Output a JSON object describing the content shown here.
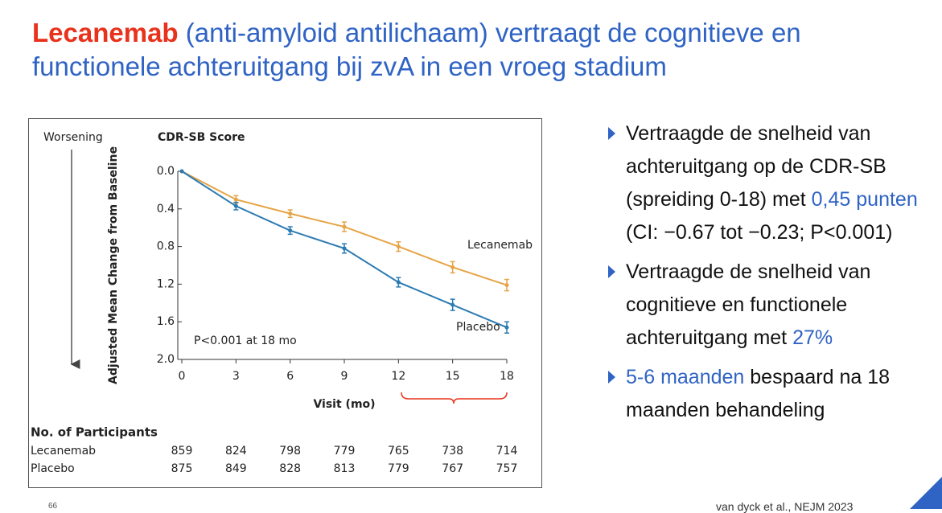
{
  "slide": {
    "title": [
      {
        "text": "Lecanemab",
        "style": "accent"
      },
      {
        "text": " (anti-amyloid antilichaam) vertraagt de cognitieve en functionele achteruitgang bij zvA in een vroeg stadium",
        "style": "normal"
      }
    ],
    "bullets": [
      [
        {
          "text": "Vertraagde de snelheid van achteruitgang op de CDR-SB (spreiding 0-18) met ",
          "style": "normal"
        },
        {
          "text": "0,45 punten",
          "style": "highlight"
        },
        {
          "text": " (CI: −0.67 tot −0.23; P<0.001)",
          "style": "normal"
        }
      ],
      [
        {
          "text": "Vertraagde de snelheid van cognitieve en functionele achteruitgang met ",
          "style": "normal"
        },
        {
          "text": "27%",
          "style": "highlight"
        }
      ],
      [
        {
          "text": "5-6 maanden",
          "style": "highlight"
        },
        {
          "text": " bespaard na 18 maanden behandeling",
          "style": "normal"
        }
      ]
    ],
    "footer": "van dyck et al., NEJM 2023",
    "page_number": "66"
  },
  "chart_data": {
    "type": "line",
    "title": "CDR-SB Score",
    "direction_label": "Worsening",
    "y_label": "Adjusted Mean Change from Baseline",
    "x_label": "Visit (mo)",
    "annotation": "P<0.001 at 18 mo",
    "x": [
      0,
      3,
      6,
      9,
      12,
      15,
      18
    ],
    "xlim": [
      0,
      18
    ],
    "xticks": [
      0,
      3,
      6,
      9,
      12,
      15,
      18
    ],
    "ylim": [
      0,
      2
    ],
    "y_inverted": true,
    "yticks": [
      {
        "value": 0,
        "label": "0.0"
      },
      0.4,
      0.8,
      1.2,
      1.6,
      {
        "value": 2,
        "label": "2.0"
      }
    ],
    "series": [
      {
        "name": "Lecanemab",
        "color": "#e6a446",
        "values": [
          0,
          0.3,
          0.45,
          0.59,
          0.8,
          1.02,
          1.21
        ],
        "errors": [
          0,
          0.04,
          0.04,
          0.05,
          0.05,
          0.06,
          0.06
        ]
      },
      {
        "name": "Placebo",
        "color": "#2b7bb3",
        "values": [
          0,
          0.37,
          0.63,
          0.82,
          1.18,
          1.42,
          1.66
        ],
        "errors": [
          0,
          0.04,
          0.04,
          0.05,
          0.05,
          0.06,
          0.06
        ]
      }
    ],
    "participants": {
      "title": "No. of Participants",
      "counts": [
        [
          859,
          824,
          798,
          779,
          765,
          738,
          714
        ],
        [
          875,
          849,
          828,
          813,
          779,
          767,
          757
        ]
      ]
    }
  }
}
